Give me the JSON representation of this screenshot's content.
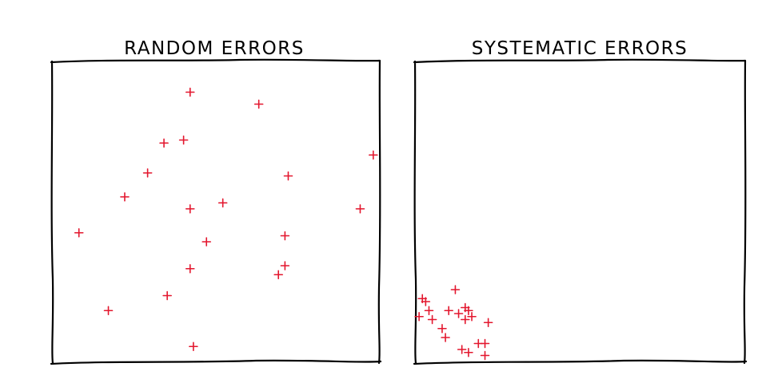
{
  "chart_data": [
    {
      "type": "scatter",
      "title": "RANDOM ERRORS",
      "marker": "+",
      "color": "#e3172e",
      "xlim": [
        0,
        1
      ],
      "ylim": [
        0,
        1
      ],
      "grid": false,
      "axes_ticks": false,
      "points": [
        {
          "x": 0.42,
          "y": 0.9
        },
        {
          "x": 0.63,
          "y": 0.86
        },
        {
          "x": 0.34,
          "y": 0.73
        },
        {
          "x": 0.4,
          "y": 0.74
        },
        {
          "x": 0.98,
          "y": 0.69
        },
        {
          "x": 0.29,
          "y": 0.63
        },
        {
          "x": 0.72,
          "y": 0.62
        },
        {
          "x": 0.22,
          "y": 0.55
        },
        {
          "x": 0.52,
          "y": 0.53
        },
        {
          "x": 0.42,
          "y": 0.51
        },
        {
          "x": 0.94,
          "y": 0.51
        },
        {
          "x": 0.08,
          "y": 0.43
        },
        {
          "x": 0.71,
          "y": 0.42
        },
        {
          "x": 0.47,
          "y": 0.4
        },
        {
          "x": 0.71,
          "y": 0.32
        },
        {
          "x": 0.42,
          "y": 0.31
        },
        {
          "x": 0.69,
          "y": 0.29
        },
        {
          "x": 0.35,
          "y": 0.22
        },
        {
          "x": 0.17,
          "y": 0.17
        },
        {
          "x": 0.43,
          "y": 0.05
        }
      ]
    },
    {
      "type": "scatter",
      "title": "SYSTEMATIC ERRORS",
      "marker": "+",
      "color": "#e3172e",
      "xlim": [
        0,
        1
      ],
      "ylim": [
        0,
        1
      ],
      "grid": false,
      "axes_ticks": false,
      "points": [
        {
          "x": 0.12,
          "y": 0.24
        },
        {
          "x": 0.02,
          "y": 0.21
        },
        {
          "x": 0.03,
          "y": 0.2
        },
        {
          "x": 0.04,
          "y": 0.17
        },
        {
          "x": 0.1,
          "y": 0.17
        },
        {
          "x": 0.15,
          "y": 0.18
        },
        {
          "x": 0.16,
          "y": 0.17
        },
        {
          "x": 0.13,
          "y": 0.16
        },
        {
          "x": 0.05,
          "y": 0.14
        },
        {
          "x": 0.15,
          "y": 0.14
        },
        {
          "x": 0.17,
          "y": 0.15
        },
        {
          "x": 0.22,
          "y": 0.13
        },
        {
          "x": 0.08,
          "y": 0.11
        },
        {
          "x": 0.09,
          "y": 0.08
        },
        {
          "x": 0.19,
          "y": 0.06
        },
        {
          "x": 0.21,
          "y": 0.06
        },
        {
          "x": 0.14,
          "y": 0.04
        },
        {
          "x": 0.16,
          "y": 0.03
        },
        {
          "x": 0.21,
          "y": 0.02
        },
        {
          "x": 0.01,
          "y": 0.15
        }
      ]
    }
  ]
}
